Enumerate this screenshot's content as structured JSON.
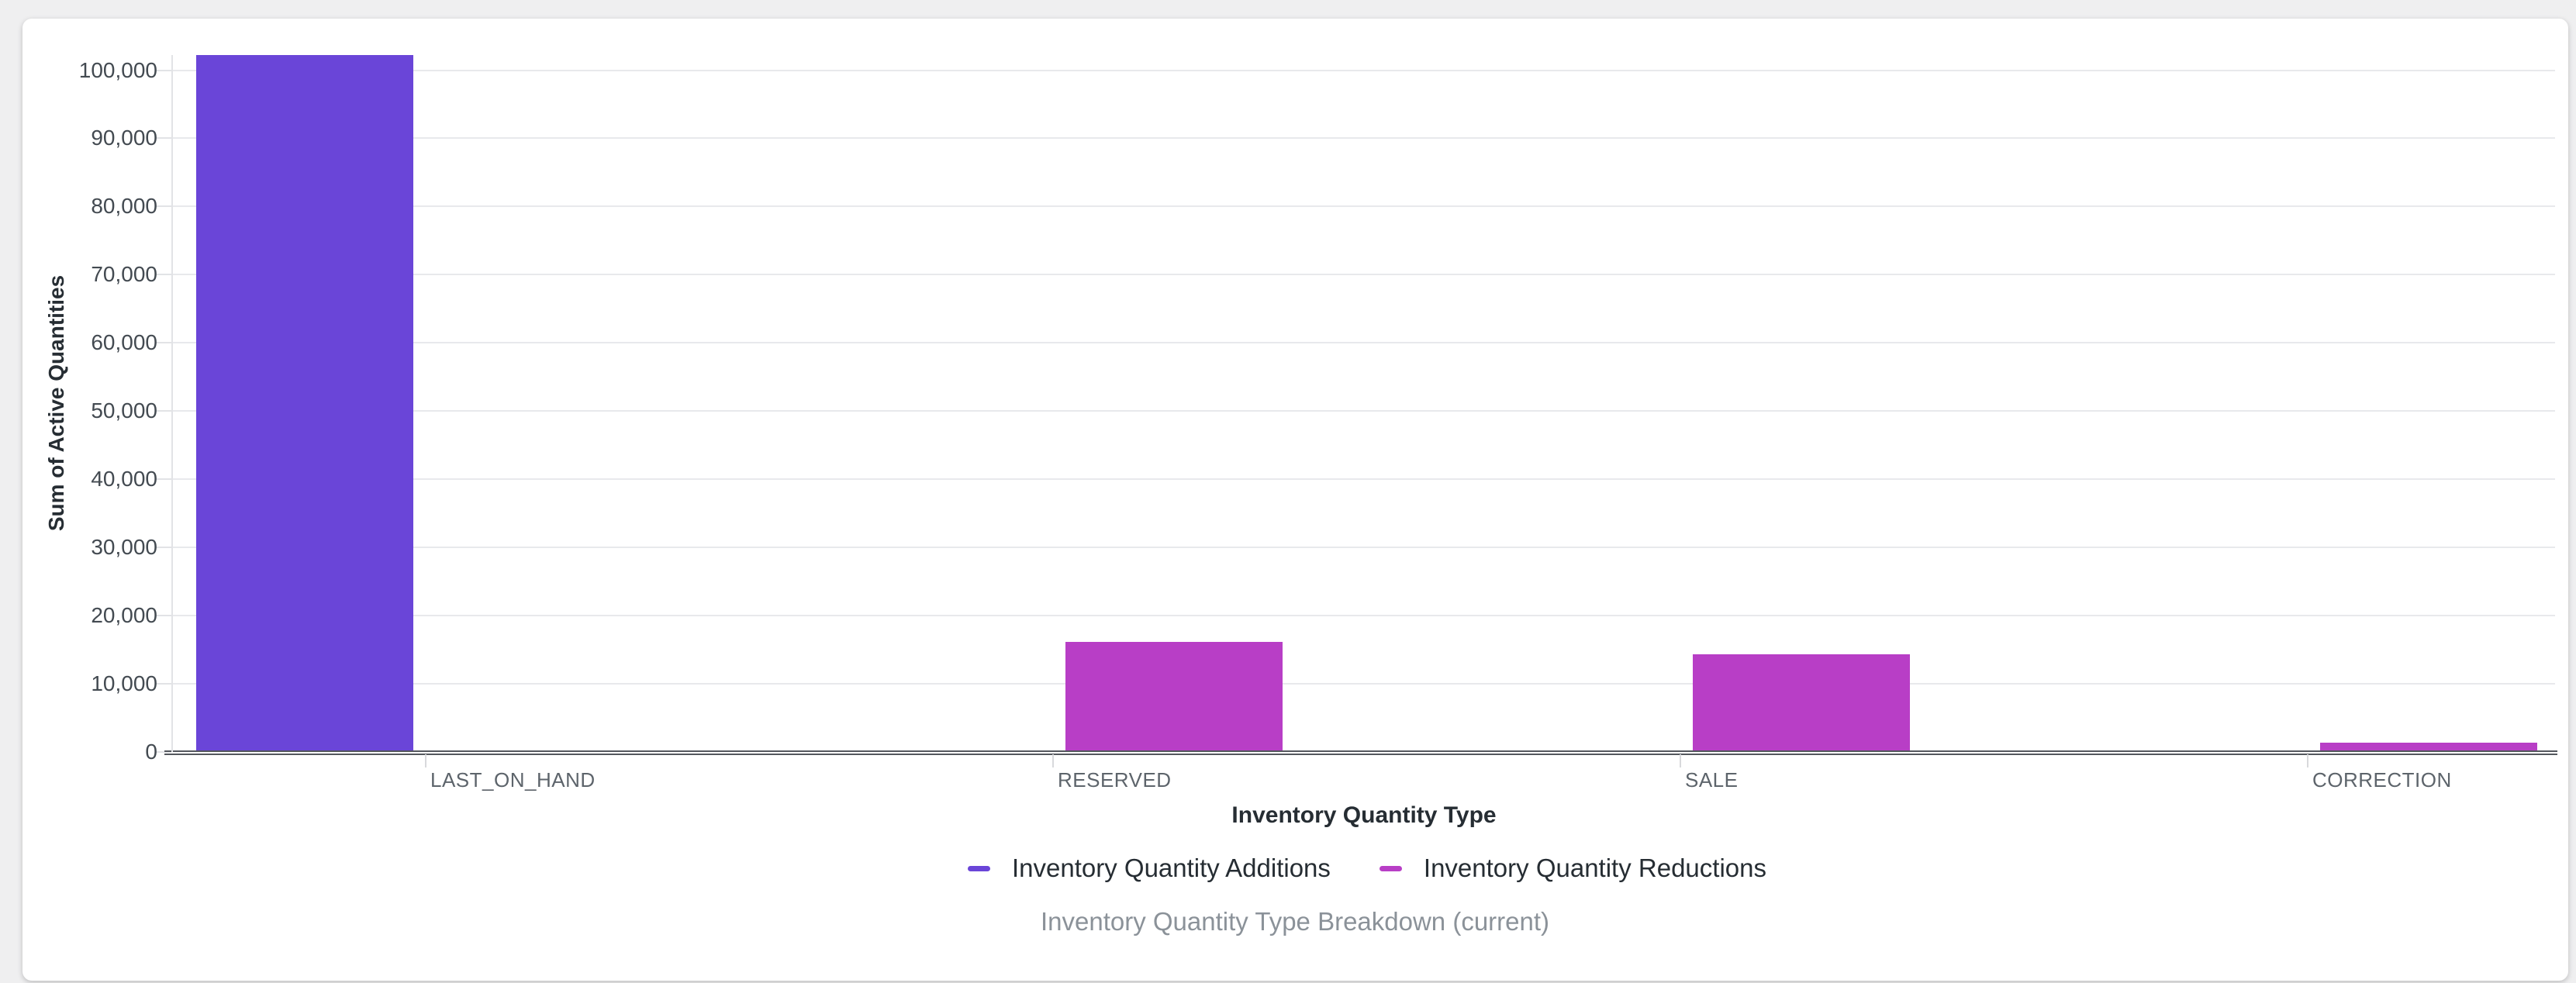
{
  "page": {
    "background": "#efeff0",
    "card_background": "#ffffff"
  },
  "chart_data": {
    "type": "bar",
    "title": "Inventory Quantity Type Breakdown (current)",
    "xlabel": "Inventory Quantity Type",
    "ylabel": "Sum of Active Quantities",
    "categories": [
      "LAST_ON_HAND",
      "RESERVED",
      "SALE",
      "CORRECTION"
    ],
    "series": [
      {
        "name": "Inventory Quantity Additions",
        "color": "#6A45D8",
        "values": [
          102200,
          0,
          0,
          0
        ]
      },
      {
        "name": "Inventory Quantity Reductions",
        "color": "#B83EC6",
        "values": [
          0,
          16200,
          14300,
          1400
        ]
      }
    ],
    "y_ticks": [
      0,
      10000,
      20000,
      30000,
      40000,
      50000,
      60000,
      70000,
      80000,
      90000,
      100000
    ],
    "y_tick_labels": [
      "0",
      "10,000",
      "20,000",
      "30,000",
      "40,000",
      "50,000",
      "60,000",
      "70,000",
      "80,000",
      "90,000",
      "100,000"
    ],
    "ylim": [
      0,
      102200
    ],
    "grid": true,
    "legend_position": "bottom"
  }
}
